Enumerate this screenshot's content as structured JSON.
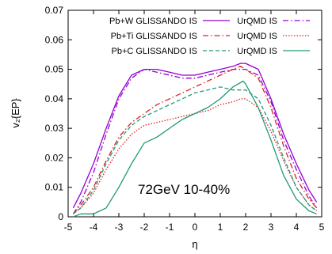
{
  "chart_data": {
    "type": "line",
    "xlabel": "η",
    "ylabel": "v₂{EP}",
    "xlim": [
      -5,
      5
    ],
    "ylim": [
      0,
      0.07
    ],
    "xticks": [
      "-5",
      "-4",
      "-3",
      "-2",
      "-1",
      "0",
      "1",
      "2",
      "3",
      "4",
      "5"
    ],
    "yticks": [
      "0",
      "0.01",
      "0.02",
      "0.03",
      "0.04",
      "0.05",
      "0.06",
      "0.07"
    ],
    "annotation": "72GeV 10-40%",
    "legend": [
      {
        "left": "Pb+W GLISSANDO IS",
        "right": "UrQMD IS"
      },
      {
        "left": "Pb+Ti GLISSANDO IS",
        "right": "UrQMD IS"
      },
      {
        "left": "Pb+C GLISSANDO IS",
        "right": "UrQMD IS"
      }
    ],
    "series": [
      {
        "group": "Pb+W",
        "model": "GLISSANDO IS",
        "color": "#9400d3",
        "dash": "solid",
        "x": [
          -4.8,
          -4.5,
          -4.0,
          -3.5,
          -3.0,
          -2.5,
          -2.0,
          -1.5,
          -1.0,
          -0.5,
          0.0,
          0.5,
          1.0,
          1.5,
          1.8,
          2.0,
          2.5,
          3.0,
          3.5,
          4.0,
          4.5,
          4.8
        ],
        "y": [
          0.003,
          0.008,
          0.018,
          0.03,
          0.041,
          0.048,
          0.05,
          0.05,
          0.049,
          0.048,
          0.048,
          0.049,
          0.05,
          0.051,
          0.052,
          0.052,
          0.05,
          0.04,
          0.028,
          0.018,
          0.009,
          0.005
        ]
      },
      {
        "group": "Pb+W",
        "model": "UrQMD IS",
        "color": "#9400d3",
        "dash": "dashdot",
        "x": [
          -4.8,
          -4.5,
          -4.0,
          -3.5,
          -3.0,
          -2.5,
          -2.0,
          -1.5,
          -1.0,
          -0.5,
          0.0,
          0.5,
          1.0,
          1.5,
          2.0,
          2.5,
          3.0,
          3.5,
          4.0,
          4.5,
          4.8
        ],
        "y": [
          0.001,
          0.005,
          0.015,
          0.028,
          0.04,
          0.047,
          0.05,
          0.049,
          0.048,
          0.047,
          0.047,
          0.048,
          0.049,
          0.05,
          0.05,
          0.048,
          0.039,
          0.026,
          0.016,
          0.007,
          0.003
        ]
      },
      {
        "group": "Pb+Ti",
        "model": "GLISSANDO IS",
        "color": "#dd2222",
        "dash": "dashdot",
        "x": [
          -4.8,
          -4.5,
          -4.0,
          -3.5,
          -3.0,
          -2.5,
          -2.0,
          -1.5,
          -1.0,
          -0.5,
          0.0,
          0.5,
          1.0,
          1.5,
          1.8,
          2.0,
          2.5,
          3.0,
          3.5,
          4.0,
          4.5,
          4.8
        ],
        "y": [
          0.001,
          0.004,
          0.01,
          0.019,
          0.027,
          0.032,
          0.035,
          0.038,
          0.04,
          0.042,
          0.044,
          0.046,
          0.048,
          0.05,
          0.051,
          0.05,
          0.047,
          0.037,
          0.024,
          0.013,
          0.006,
          0.003
        ]
      },
      {
        "group": "Pb+Ti",
        "model": "UrQMD IS",
        "color": "#dd2222",
        "dash": "dotted",
        "x": [
          -4.8,
          -4.5,
          -4.0,
          -3.5,
          -3.0,
          -2.5,
          -2.0,
          -1.5,
          -1.0,
          -0.5,
          0.0,
          0.5,
          1.0,
          1.5,
          1.8,
          2.0,
          2.5,
          3.0,
          3.5,
          4.0,
          4.5,
          4.8
        ],
        "y": [
          0.001,
          0.003,
          0.008,
          0.016,
          0.023,
          0.028,
          0.031,
          0.032,
          0.033,
          0.034,
          0.035,
          0.036,
          0.038,
          0.039,
          0.04,
          0.04,
          0.037,
          0.029,
          0.019,
          0.01,
          0.004,
          0.002
        ]
      },
      {
        "group": "Pb+C",
        "model": "GLISSANDO IS",
        "color": "#229977",
        "dash": "dashed",
        "x": [
          -4.8,
          -4.5,
          -4.0,
          -3.5,
          -3.0,
          -2.5,
          -2.0,
          -1.5,
          -1.0,
          -0.5,
          0.0,
          0.5,
          1.0,
          1.5,
          2.0,
          2.5,
          3.0,
          3.5,
          4.0,
          4.5,
          4.8
        ],
        "y": [
          0.001,
          0.003,
          0.009,
          0.018,
          0.026,
          0.031,
          0.034,
          0.036,
          0.038,
          0.04,
          0.042,
          0.043,
          0.044,
          0.043,
          0.043,
          0.04,
          0.031,
          0.02,
          0.01,
          0.004,
          0.002
        ]
      },
      {
        "group": "Pb+C",
        "model": "UrQMD IS",
        "color": "#229977",
        "dash": "solid",
        "x": [
          -4.8,
          -4.5,
          -4.0,
          -3.5,
          -3.0,
          -2.5,
          -2.0,
          -1.5,
          -1.0,
          -0.5,
          0.0,
          0.5,
          1.0,
          1.5,
          1.9,
          2.0,
          2.5,
          3.0,
          3.5,
          4.0,
          4.5,
          4.8
        ],
        "y": [
          0.0,
          0.001,
          0.001,
          0.003,
          0.01,
          0.018,
          0.025,
          0.027,
          0.03,
          0.033,
          0.035,
          0.037,
          0.04,
          0.044,
          0.046,
          0.045,
          0.037,
          0.026,
          0.014,
          0.006,
          0.002,
          0.001
        ]
      }
    ]
  }
}
